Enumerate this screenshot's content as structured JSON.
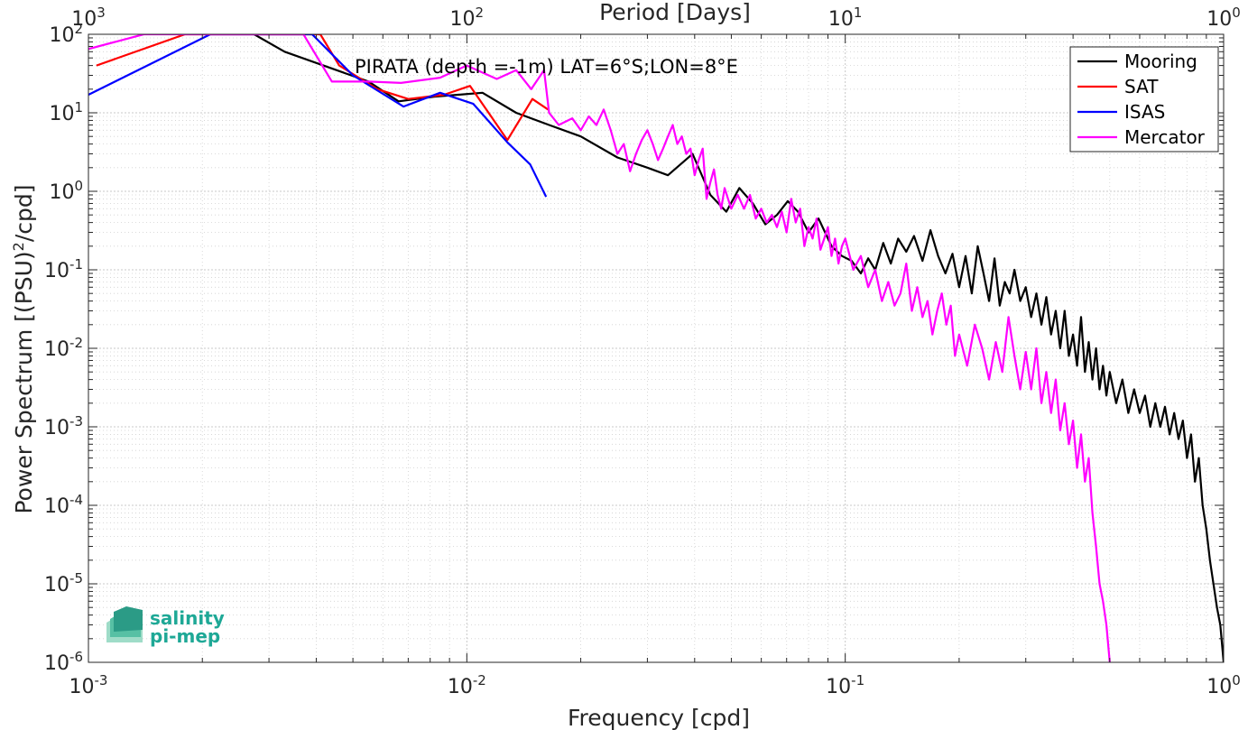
{
  "chart_data": {
    "type": "line",
    "title": "PIRATA (depth =-1m) LAT=6°S;LON=8°E",
    "xlabel": "Frequency [cpd]",
    "ylabel_main": "Power Spectrum [(PSU)",
    "ylabel_sup": "2",
    "ylabel_tail": "/cpd]",
    "top_xlabel": "Period [Days]",
    "x_scale": "log",
    "y_scale": "log",
    "xlim": [
      0.001,
      1
    ],
    "ylim": [
      1e-06,
      100
    ],
    "grid": true,
    "legend_position": "top-right",
    "x_ticks": [
      {
        "value": 0.001,
        "base": "10",
        "exp": "-3"
      },
      {
        "value": 0.01,
        "base": "10",
        "exp": "-2"
      },
      {
        "value": 0.1,
        "base": "10",
        "exp": "-1"
      },
      {
        "value": 1,
        "base": "10",
        "exp": "0"
      }
    ],
    "top_ticks": [
      {
        "value": 0.001,
        "base": "10",
        "exp": "3"
      },
      {
        "value": 0.01,
        "base": "10",
        "exp": "2"
      },
      {
        "value": 0.1,
        "base": "10",
        "exp": "1"
      },
      {
        "value": 1,
        "base": "10",
        "exp": "0"
      }
    ],
    "y_ticks": [
      {
        "value": 100,
        "base": "10",
        "exp": "2"
      },
      {
        "value": 10,
        "base": "10",
        "exp": "1"
      },
      {
        "value": 1,
        "base": "10",
        "exp": "0"
      },
      {
        "value": 0.1,
        "base": "10",
        "exp": "-1"
      },
      {
        "value": 0.01,
        "base": "10",
        "exp": "-2"
      },
      {
        "value": 0.001,
        "base": "10",
        "exp": "-3"
      },
      {
        "value": 0.0001,
        "base": "10",
        "exp": "-4"
      },
      {
        "value": 1e-05,
        "base": "10",
        "exp": "-5"
      },
      {
        "value": 1e-06,
        "base": "10",
        "exp": "-6"
      }
    ],
    "series": [
      {
        "name": "Mooring",
        "color": "#000000",
        "points": [
          [
            0.00274,
            100
          ],
          [
            0.0033,
            60
          ],
          [
            0.0055,
            25
          ],
          [
            0.0066,
            14
          ],
          [
            0.0082,
            16
          ],
          [
            0.011,
            18
          ],
          [
            0.0135,
            10
          ],
          [
            0.0165,
            7
          ],
          [
            0.02,
            5
          ],
          [
            0.025,
            2.7
          ],
          [
            0.03,
            2
          ],
          [
            0.034,
            1.6
          ],
          [
            0.0395,
            3
          ],
          [
            0.044,
            0.9
          ],
          [
            0.0485,
            0.55
          ],
          [
            0.0525,
            1.1
          ],
          [
            0.057,
            0.7
          ],
          [
            0.0615,
            0.38
          ],
          [
            0.066,
            0.5
          ],
          [
            0.0705,
            0.75
          ],
          [
            0.075,
            0.55
          ],
          [
            0.08,
            0.3
          ],
          [
            0.085,
            0.45
          ],
          [
            0.092,
            0.2
          ],
          [
            0.098,
            0.15
          ],
          [
            0.104,
            0.13
          ],
          [
            0.11,
            0.09
          ],
          [
            0.115,
            0.14
          ],
          [
            0.12,
            0.1
          ],
          [
            0.126,
            0.22
          ],
          [
            0.132,
            0.12
          ],
          [
            0.138,
            0.25
          ],
          [
            0.145,
            0.17
          ],
          [
            0.152,
            0.27
          ],
          [
            0.16,
            0.13
          ],
          [
            0.168,
            0.32
          ],
          [
            0.176,
            0.15
          ],
          [
            0.184,
            0.09
          ],
          [
            0.192,
            0.16
          ],
          [
            0.2,
            0.06
          ],
          [
            0.208,
            0.15
          ],
          [
            0.216,
            0.05
          ],
          [
            0.224,
            0.2
          ],
          [
            0.232,
            0.09
          ],
          [
            0.24,
            0.04
          ],
          [
            0.248,
            0.14
          ],
          [
            0.256,
            0.035
          ],
          [
            0.264,
            0.07
          ],
          [
            0.272,
            0.05
          ],
          [
            0.28,
            0.1
          ],
          [
            0.29,
            0.04
          ],
          [
            0.3,
            0.06
          ],
          [
            0.31,
            0.025
          ],
          [
            0.32,
            0.05
          ],
          [
            0.33,
            0.02
          ],
          [
            0.34,
            0.045
          ],
          [
            0.35,
            0.015
          ],
          [
            0.36,
            0.03
          ],
          [
            0.37,
            0.01
          ],
          [
            0.38,
            0.03
          ],
          [
            0.39,
            0.008
          ],
          [
            0.4,
            0.015
          ],
          [
            0.41,
            0.006
          ],
          [
            0.42,
            0.025
          ],
          [
            0.43,
            0.005
          ],
          [
            0.44,
            0.012
          ],
          [
            0.45,
            0.004
          ],
          [
            0.46,
            0.01
          ],
          [
            0.47,
            0.003
          ],
          [
            0.48,
            0.006
          ],
          [
            0.49,
            0.0025
          ],
          [
            0.5,
            0.005
          ],
          [
            0.52,
            0.002
          ],
          [
            0.54,
            0.004
          ],
          [
            0.56,
            0.0015
          ],
          [
            0.58,
            0.003
          ],
          [
            0.6,
            0.0015
          ],
          [
            0.62,
            0.0025
          ],
          [
            0.64,
            0.001
          ],
          [
            0.66,
            0.002
          ],
          [
            0.68,
            0.001
          ],
          [
            0.7,
            0.0018
          ],
          [
            0.72,
            0.0008
          ],
          [
            0.74,
            0.0015
          ],
          [
            0.76,
            0.0007
          ],
          [
            0.78,
            0.0012
          ],
          [
            0.8,
            0.0004
          ],
          [
            0.82,
            0.0008
          ],
          [
            0.84,
            0.0002
          ],
          [
            0.86,
            0.0004
          ],
          [
            0.88,
            0.0001
          ],
          [
            0.9,
            5e-05
          ],
          [
            0.92,
            2e-05
          ],
          [
            0.94,
            1e-05
          ],
          [
            0.96,
            5e-06
          ],
          [
            0.98,
            3e-06
          ],
          [
            1.0,
            1e-06
          ]
        ]
      },
      {
        "name": "SAT",
        "color": "#ff0000",
        "points": [
          [
            0.00105,
            40
          ],
          [
            0.0018,
            100
          ],
          [
            0.0041,
            100
          ],
          [
            0.0046,
            40
          ],
          [
            0.0058,
            20
          ],
          [
            0.007,
            15
          ],
          [
            0.0087,
            17
          ],
          [
            0.0102,
            22
          ],
          [
            0.0128,
            4.5
          ],
          [
            0.0149,
            15
          ],
          [
            0.0164,
            11
          ]
        ]
      },
      {
        "name": "ISAS",
        "color": "#0000ff",
        "points": [
          [
            0.001,
            17
          ],
          [
            0.0021,
            100
          ],
          [
            0.0039,
            100
          ],
          [
            0.005,
            30
          ],
          [
            0.0068,
            12
          ],
          [
            0.0085,
            18
          ],
          [
            0.0104,
            13
          ],
          [
            0.0128,
            4.2
          ],
          [
            0.0147,
            2.2
          ],
          [
            0.0162,
            0.85
          ]
        ]
      },
      {
        "name": "Mercator",
        "color": "#ff00ff",
        "points": [
          [
            0.001,
            65
          ],
          [
            0.0014,
            100
          ],
          [
            0.0037,
            100
          ],
          [
            0.0044,
            25
          ],
          [
            0.0055,
            25
          ],
          [
            0.0067,
            24
          ],
          [
            0.0085,
            28
          ],
          [
            0.01,
            40
          ],
          [
            0.012,
            27
          ],
          [
            0.0135,
            35
          ],
          [
            0.0148,
            20
          ],
          [
            0.016,
            35
          ],
          [
            0.0165,
            10
          ],
          [
            0.0175,
            7
          ],
          [
            0.019,
            8.5
          ],
          [
            0.02,
            6
          ],
          [
            0.021,
            9
          ],
          [
            0.022,
            7
          ],
          [
            0.023,
            11
          ],
          [
            0.024,
            6
          ],
          [
            0.025,
            3
          ],
          [
            0.026,
            4
          ],
          [
            0.027,
            1.8
          ],
          [
            0.028,
            3
          ],
          [
            0.029,
            4.5
          ],
          [
            0.03,
            6
          ],
          [
            0.031,
            4
          ],
          [
            0.032,
            2.5
          ],
          [
            0.033,
            3.5
          ],
          [
            0.034,
            5
          ],
          [
            0.035,
            7
          ],
          [
            0.036,
            4
          ],
          [
            0.037,
            5
          ],
          [
            0.038,
            3
          ],
          [
            0.039,
            3.5
          ],
          [
            0.04,
            1.6
          ],
          [
            0.041,
            2.5
          ],
          [
            0.042,
            3.5
          ],
          [
            0.043,
            0.8
          ],
          [
            0.044,
            1.3
          ],
          [
            0.045,
            1.9
          ],
          [
            0.046,
            0.9
          ],
          [
            0.047,
            0.6
          ],
          [
            0.048,
            1.1
          ],
          [
            0.049,
            0.8
          ],
          [
            0.05,
            0.6
          ],
          [
            0.052,
            0.9
          ],
          [
            0.054,
            0.6
          ],
          [
            0.056,
            0.9
          ],
          [
            0.058,
            0.45
          ],
          [
            0.06,
            0.6
          ],
          [
            0.062,
            0.4
          ],
          [
            0.064,
            0.5
          ],
          [
            0.066,
            0.35
          ],
          [
            0.068,
            0.55
          ],
          [
            0.07,
            0.3
          ],
          [
            0.072,
            0.8
          ],
          [
            0.074,
            0.4
          ],
          [
            0.076,
            0.6
          ],
          [
            0.078,
            0.2
          ],
          [
            0.08,
            0.35
          ],
          [
            0.082,
            0.25
          ],
          [
            0.084,
            0.45
          ],
          [
            0.086,
            0.18
          ],
          [
            0.088,
            0.25
          ],
          [
            0.09,
            0.35
          ],
          [
            0.092,
            0.15
          ],
          [
            0.094,
            0.25
          ],
          [
            0.096,
            0.12
          ],
          [
            0.098,
            0.2
          ],
          [
            0.1,
            0.25
          ],
          [
            0.105,
            0.1
          ],
          [
            0.11,
            0.15
          ],
          [
            0.115,
            0.06
          ],
          [
            0.12,
            0.1
          ],
          [
            0.125,
            0.04
          ],
          [
            0.13,
            0.07
          ],
          [
            0.135,
            0.035
          ],
          [
            0.14,
            0.05
          ],
          [
            0.145,
            0.12
          ],
          [
            0.15,
            0.03
          ],
          [
            0.155,
            0.06
          ],
          [
            0.16,
            0.025
          ],
          [
            0.165,
            0.04
          ],
          [
            0.17,
            0.015
          ],
          [
            0.175,
            0.03
          ],
          [
            0.18,
            0.05
          ],
          [
            0.185,
            0.02
          ],
          [
            0.19,
            0.035
          ],
          [
            0.195,
            0.008
          ],
          [
            0.2,
            0.015
          ],
          [
            0.21,
            0.006
          ],
          [
            0.22,
            0.02
          ],
          [
            0.23,
            0.01
          ],
          [
            0.24,
            0.004
          ],
          [
            0.25,
            0.012
          ],
          [
            0.26,
            0.005
          ],
          [
            0.27,
            0.025
          ],
          [
            0.28,
            0.008
          ],
          [
            0.29,
            0.003
          ],
          [
            0.3,
            0.009
          ],
          [
            0.31,
            0.003
          ],
          [
            0.32,
            0.01
          ],
          [
            0.33,
            0.002
          ],
          [
            0.34,
            0.005
          ],
          [
            0.35,
            0.0015
          ],
          [
            0.36,
            0.004
          ],
          [
            0.37,
            0.0009
          ],
          [
            0.38,
            0.002
          ],
          [
            0.39,
            0.0006
          ],
          [
            0.4,
            0.0012
          ],
          [
            0.41,
            0.0003
          ],
          [
            0.42,
            0.0008
          ],
          [
            0.43,
            0.0002
          ],
          [
            0.44,
            0.0004
          ],
          [
            0.45,
            8e-05
          ],
          [
            0.46,
            3e-05
          ],
          [
            0.47,
            1e-05
          ],
          [
            0.48,
            6e-06
          ],
          [
            0.49,
            3e-06
          ],
          [
            0.5,
            1e-06
          ]
        ]
      }
    ]
  },
  "logo": {
    "line1": "salinity",
    "line2": "pi-mep"
  }
}
